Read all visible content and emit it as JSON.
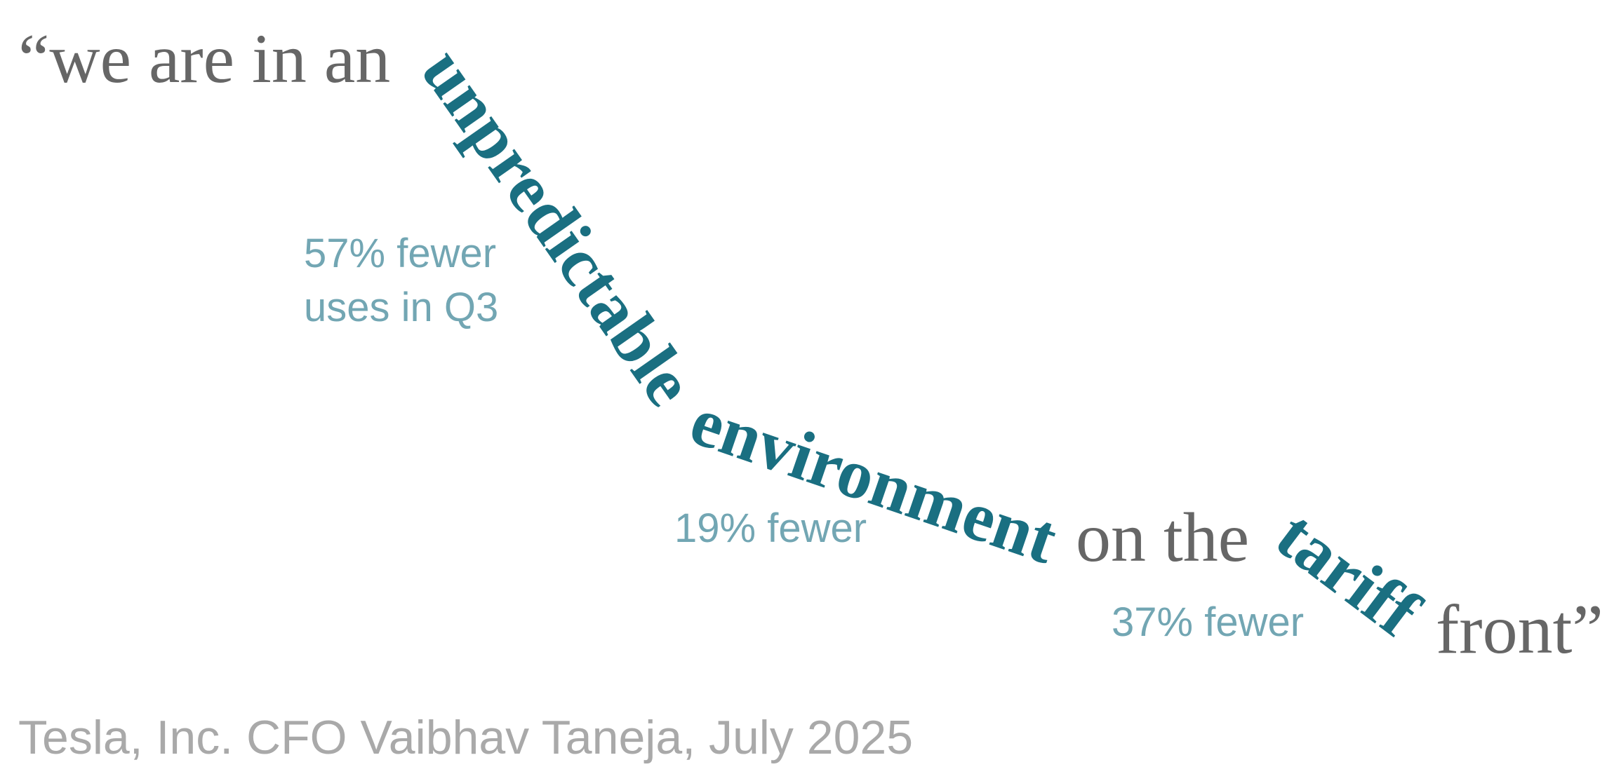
{
  "quote": {
    "segments": [
      {
        "text": "“we are in an",
        "highlight": false
      },
      {
        "text": "unpredictable",
        "highlight": true
      },
      {
        "text": "environment",
        "highlight": true
      },
      {
        "text": "on the",
        "highlight": false
      },
      {
        "text": "tariff",
        "highlight": true
      },
      {
        "text": "front”",
        "highlight": false
      }
    ]
  },
  "annotations": [
    {
      "lines": [
        "57% fewer",
        "uses in Q3"
      ]
    },
    {
      "lines": [
        "19% fewer"
      ]
    },
    {
      "lines": [
        "37% fewer"
      ]
    }
  ],
  "attribution": "Tesla, Inc. CFO Vaibhav Taneja, July 2025"
}
